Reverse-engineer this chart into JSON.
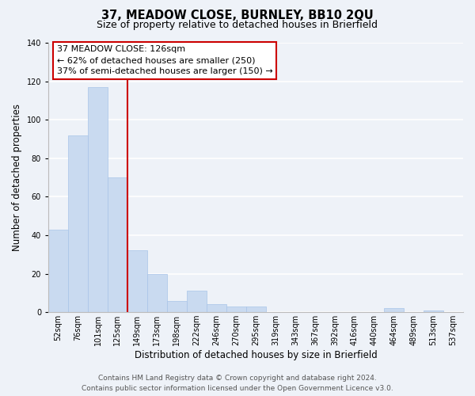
{
  "title": "37, MEADOW CLOSE, BURNLEY, BB10 2QU",
  "subtitle": "Size of property relative to detached houses in Brierfield",
  "xlabel": "Distribution of detached houses by size in Brierfield",
  "ylabel": "Number of detached properties",
  "bar_labels": [
    "52sqm",
    "76sqm",
    "101sqm",
    "125sqm",
    "149sqm",
    "173sqm",
    "198sqm",
    "222sqm",
    "246sqm",
    "270sqm",
    "295sqm",
    "319sqm",
    "343sqm",
    "367sqm",
    "392sqm",
    "416sqm",
    "440sqm",
    "464sqm",
    "489sqm",
    "513sqm",
    "537sqm"
  ],
  "bar_values": [
    43,
    92,
    117,
    70,
    32,
    20,
    6,
    11,
    4,
    3,
    3,
    0,
    0,
    0,
    0,
    0,
    0,
    2,
    0,
    1,
    0
  ],
  "bar_color": "#c9daf0",
  "bar_edge_color": "#a8c4e8",
  "vline_index": 3,
  "vline_color": "#cc0000",
  "annotation_line1": "37 MEADOW CLOSE: 126sqm",
  "annotation_line2": "← 62% of detached houses are smaller (250)",
  "annotation_line3": "37% of semi-detached houses are larger (150) →",
  "annotation_box_facecolor": "#ffffff",
  "annotation_box_edgecolor": "#cc0000",
  "ylim": [
    0,
    140
  ],
  "yticks": [
    0,
    20,
    40,
    60,
    80,
    100,
    120,
    140
  ],
  "footer_line1": "Contains HM Land Registry data © Crown copyright and database right 2024.",
  "footer_line2": "Contains public sector information licensed under the Open Government Licence v3.0.",
  "bg_color": "#eef2f8",
  "plot_bg_color": "#eef2f8",
  "grid_color": "#ffffff",
  "title_fontsize": 10.5,
  "subtitle_fontsize": 9,
  "axis_label_fontsize": 8.5,
  "tick_fontsize": 7,
  "annotation_fontsize": 8,
  "footer_fontsize": 6.5
}
